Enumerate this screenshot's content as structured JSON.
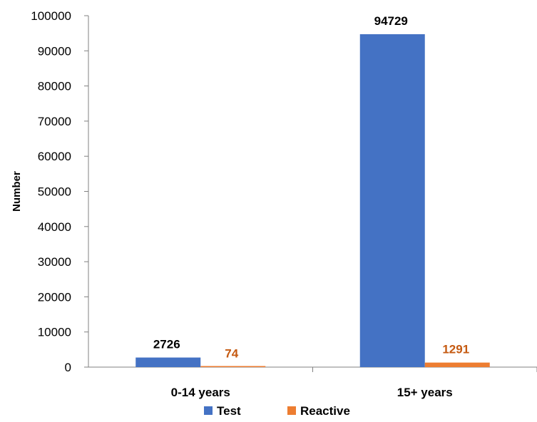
{
  "chart_data": {
    "type": "bar",
    "title": "",
    "xlabel": "",
    "ylabel": "Number",
    "categories": [
      "0-14 years",
      "15+ years"
    ],
    "series": [
      {
        "name": "Test",
        "values": [
          2726,
          94729
        ],
        "color": "#4472C4",
        "label_color": "#000000"
      },
      {
        "name": "Reactive",
        "values": [
          74,
          1291
        ],
        "color": "#ED7D31",
        "label_color": "#C55A11"
      }
    ],
    "ylim": [
      0,
      100000
    ],
    "yticks": [
      0,
      10000,
      20000,
      30000,
      40000,
      50000,
      60000,
      70000,
      80000,
      90000,
      100000
    ],
    "grid": false,
    "legend_position": "bottom"
  }
}
